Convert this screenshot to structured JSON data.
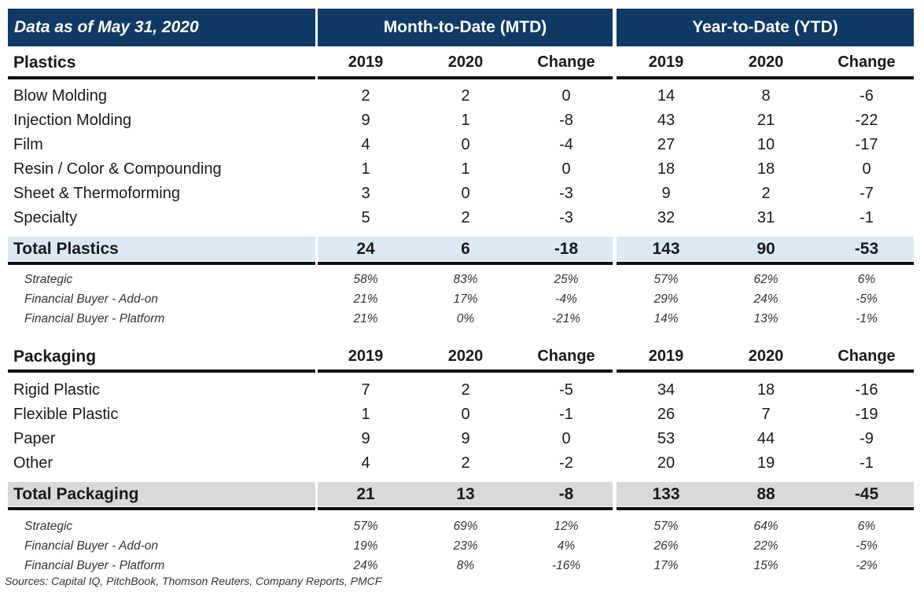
{
  "header": {
    "date_label": "Data as of May 31, 2020",
    "mtd_label": "Month-to-Date (MTD)",
    "ytd_label": "Year-to-Date (YTD)"
  },
  "columns": [
    "2019",
    "2020",
    "Change",
    "2019",
    "2020",
    "Change"
  ],
  "plastics": {
    "title": "Plastics",
    "rows": [
      {
        "label": "Blow Molding",
        "values": [
          "2",
          "2",
          "0",
          "14",
          "8",
          "-6"
        ]
      },
      {
        "label": "Injection Molding",
        "values": [
          "9",
          "1",
          "-8",
          "43",
          "21",
          "-22"
        ]
      },
      {
        "label": "Film",
        "values": [
          "4",
          "0",
          "-4",
          "27",
          "10",
          "-17"
        ]
      },
      {
        "label": "Resin / Color & Compounding",
        "values": [
          "1",
          "1",
          "0",
          "18",
          "18",
          "0"
        ]
      },
      {
        "label": "Sheet & Thermoforming",
        "values": [
          "3",
          "0",
          "-3",
          "9",
          "2",
          "-7"
        ]
      },
      {
        "label": "Specialty",
        "values": [
          "5",
          "2",
          "-3",
          "32",
          "31",
          "-1"
        ]
      }
    ],
    "total": {
      "label": "Total Plastics",
      "values": [
        "24",
        "6",
        "-18",
        "143",
        "90",
        "-53"
      ]
    },
    "buyers": [
      {
        "label": "Strategic",
        "values": [
          "58%",
          "83%",
          "25%",
          "57%",
          "62%",
          "6%"
        ]
      },
      {
        "label": "Financial Buyer - Add-on",
        "values": [
          "21%",
          "17%",
          "-4%",
          "29%",
          "24%",
          "-5%"
        ]
      },
      {
        "label": "Financial Buyer - Platform",
        "values": [
          "21%",
          "0%",
          "-21%",
          "14%",
          "13%",
          "-1%"
        ]
      }
    ]
  },
  "packaging": {
    "title": "Packaging",
    "rows": [
      {
        "label": "Rigid Plastic",
        "values": [
          "7",
          "2",
          "-5",
          "34",
          "18",
          "-16"
        ]
      },
      {
        "label": "Flexible Plastic",
        "values": [
          "1",
          "0",
          "-1",
          "26",
          "7",
          "-19"
        ]
      },
      {
        "label": "Paper",
        "values": [
          "9",
          "9",
          "0",
          "53",
          "44",
          "-9"
        ]
      },
      {
        "label": "Other",
        "values": [
          "4",
          "2",
          "-2",
          "20",
          "19",
          "-1"
        ]
      }
    ],
    "total": {
      "label": "Total Packaging",
      "values": [
        "21",
        "13",
        "-8",
        "133",
        "88",
        "-45"
      ]
    },
    "buyers": [
      {
        "label": "Strategic",
        "values": [
          "57%",
          "69%",
          "12%",
          "57%",
          "64%",
          "6%"
        ]
      },
      {
        "label": "Financial Buyer - Add-on",
        "values": [
          "19%",
          "23%",
          "4%",
          "26%",
          "22%",
          "-5%"
        ]
      },
      {
        "label": "Financial Buyer - Platform",
        "values": [
          "24%",
          "8%",
          "-16%",
          "17%",
          "15%",
          "-2%"
        ]
      }
    ]
  },
  "colors": {
    "header_bg": "#0f3a66",
    "plastics_total_bg": "#dbe9f5",
    "packaging_total_bg": "#d9d9d9"
  },
  "sources": "Sources: Capital IQ, PitchBook, Thomson Reuters, Company Reports, PMCF"
}
